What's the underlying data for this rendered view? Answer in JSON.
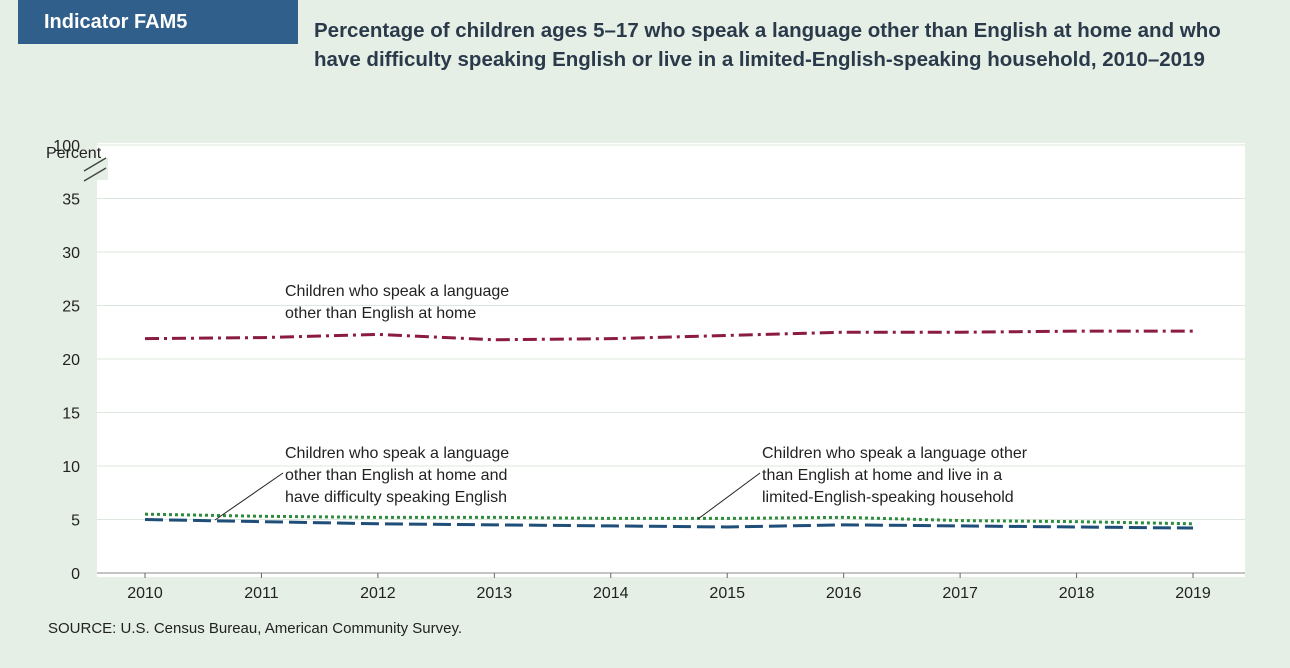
{
  "indicator": {
    "label": "Indicator FAM5"
  },
  "source": "SOURCE: U.S. Census Bureau, American Community Survey.",
  "chart_data": {
    "type": "line",
    "title": "Percentage of children ages 5–17 who speak a language other than English at home and who have difficulty speaking English or live in a limited-English-speaking household, 2010–2019",
    "ylabel": "Percent",
    "xlabel": "",
    "x": [
      "2010",
      "2011",
      "2012",
      "2013",
      "2014",
      "2015",
      "2016",
      "2017",
      "2018",
      "2019"
    ],
    "yticks": [
      "0",
      "5",
      "10",
      "15",
      "20",
      "25",
      "30",
      "35",
      "100"
    ],
    "ylim": [
      0,
      100
    ],
    "axis_break": "between 35 and 100",
    "grid": true,
    "series": [
      {
        "name": "Children who speak a language other than English at home",
        "color": "#8b1c3f",
        "style": "dash-dot",
        "values": [
          21.9,
          22.0,
          22.3,
          21.8,
          21.9,
          22.2,
          22.5,
          22.5,
          22.6,
          22.6
        ],
        "annotation": [
          "Children who speak a language",
          "other than English at home"
        ]
      },
      {
        "name": "Children who speak a language other than English at home and have difficulty speaking English",
        "color": "#1f4e79",
        "style": "long-dash",
        "values": [
          5.0,
          4.8,
          4.6,
          4.5,
          4.4,
          4.3,
          4.5,
          4.4,
          4.3,
          4.2
        ],
        "annotation": [
          "Children who speak a language",
          "other than English at home and",
          "have difficulty speaking English"
        ]
      },
      {
        "name": "Children who speak a language other than English at home and live in a limited-English-speaking household",
        "color": "#2e8b3e",
        "style": "dotted",
        "values": [
          5.5,
          5.3,
          5.2,
          5.2,
          5.1,
          5.1,
          5.2,
          4.9,
          4.8,
          4.6
        ],
        "annotation": [
          "Children who speak a language other",
          "than English at home and live in a",
          "limited-English-speaking household"
        ]
      }
    ]
  }
}
